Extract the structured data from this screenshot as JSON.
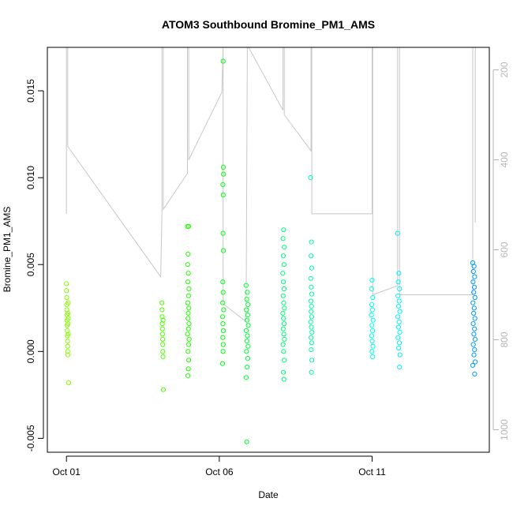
{
  "chart_data": {
    "type": "scatter",
    "title": "ATOM3 Southbound Bromine_PM1_AMS",
    "xlabel": "Date",
    "ylabel": "Bromine_PM1_AMS",
    "x_ticks": [
      "Oct 01",
      "Oct 06",
      "Oct 11"
    ],
    "y_ticks": [
      "-0.005",
      "0.000",
      "0.005",
      "0.010",
      "0.015"
    ],
    "y2_ticks": [
      "200",
      "400",
      "600",
      "800",
      "1000"
    ],
    "xlim": [
      "2017-09-30T09:00",
      "2017-10-14T20:00"
    ],
    "ylim": [
      -0.0058,
      0.0175
    ],
    "y2lim": [
      1050,
      150
    ],
    "y2_reversed": true,
    "grid": false,
    "legend": "none",
    "colors": {
      "axis": "#000000",
      "right_axis": "#b5b5b5",
      "altitude_line": "#c8c8c8"
    },
    "series": [
      {
        "color": "#88ff00",
        "points": [
          {
            "x": "2017-10-01T00:00",
            "y": 0.0039
          },
          {
            "x": "2017-10-01T00:05",
            "y": 0.0035
          },
          {
            "x": "2017-10-01T00:10",
            "y": 0.0031
          },
          {
            "x": "2017-10-01T00:15",
            "y": 0.0027
          },
          {
            "x": "2017-10-01T00:20",
            "y": 0.0024
          },
          {
            "x": "2017-10-01T00:25",
            "y": 0.0021
          },
          {
            "x": "2017-10-01T00:30",
            "y": 0.0018
          },
          {
            "x": "2017-10-01T00:35",
            "y": 0.0015
          },
          {
            "x": "2017-10-01T00:40",
            "y": 0.0012
          },
          {
            "x": "2017-10-01T00:45",
            "y": 0.0009
          },
          {
            "x": "2017-10-01T00:50",
            "y": 0.0006
          },
          {
            "x": "2017-10-01T00:55",
            "y": 0.0003
          },
          {
            "x": "2017-10-01T01:00",
            "y": 0.0
          },
          {
            "x": "2017-10-01T01:05",
            "y": -0.0002
          },
          {
            "x": "2017-10-01T01:10",
            "y": 0.0022
          },
          {
            "x": "2017-10-01T01:15",
            "y": 0.0016
          },
          {
            "x": "2017-10-01T01:20",
            "y": 0.0028
          },
          {
            "x": "2017-10-01T01:25",
            "y": 0.001
          },
          {
            "x": "2017-10-01T01:30",
            "y": 0.0019
          },
          {
            "x": "2017-10-01T01:40",
            "y": -0.0018
          }
        ]
      },
      {
        "color": "#4dff00",
        "points": [
          {
            "x": "2017-10-04T03:00",
            "y": 0.0028
          },
          {
            "x": "2017-10-04T03:05",
            "y": 0.0024
          },
          {
            "x": "2017-10-04T03:10",
            "y": 0.002
          },
          {
            "x": "2017-10-04T03:15",
            "y": 0.0016
          },
          {
            "x": "2017-10-04T03:20",
            "y": 0.0013
          },
          {
            "x": "2017-10-04T03:25",
            "y": 0.001
          },
          {
            "x": "2017-10-04T03:30",
            "y": 0.0007
          },
          {
            "x": "2017-10-04T03:35",
            "y": 0.0004
          },
          {
            "x": "2017-10-04T03:40",
            "y": 0.0
          },
          {
            "x": "2017-10-04T03:45",
            "y": -0.0003
          },
          {
            "x": "2017-10-04T03:50",
            "y": 0.0018
          },
          {
            "x": "2017-10-04T04:00",
            "y": -0.0022
          }
        ]
      },
      {
        "color": "#22ff00",
        "points": [
          {
            "x": "2017-10-04T23:00",
            "y": 0.0072
          },
          {
            "x": "2017-10-05T00:00",
            "y": 0.0072
          },
          {
            "x": "2017-10-04T23:30",
            "y": 0.0056
          },
          {
            "x": "2017-10-04T23:10",
            "y": 0.005
          },
          {
            "x": "2017-10-04T23:40",
            "y": 0.0045
          },
          {
            "x": "2017-10-04T23:20",
            "y": 0.004
          },
          {
            "x": "2017-10-05T00:10",
            "y": 0.0036
          },
          {
            "x": "2017-10-04T23:50",
            "y": 0.0032
          },
          {
            "x": "2017-10-04T23:15",
            "y": 0.0028
          },
          {
            "x": "2017-10-05T00:05",
            "y": 0.0025
          },
          {
            "x": "2017-10-04T23:35",
            "y": 0.0022
          },
          {
            "x": "2017-10-04T23:25",
            "y": 0.0019
          },
          {
            "x": "2017-10-05T00:15",
            "y": 0.0016
          },
          {
            "x": "2017-10-04T23:45",
            "y": 0.0013
          },
          {
            "x": "2017-10-04T23:05",
            "y": 0.001
          },
          {
            "x": "2017-10-05T00:20",
            "y": 0.0007
          },
          {
            "x": "2017-10-04T23:55",
            "y": 0.0004
          },
          {
            "x": "2017-10-04T23:30",
            "y": 0.0
          },
          {
            "x": "2017-10-05T00:00",
            "y": -0.0005
          },
          {
            "x": "2017-10-04T23:40",
            "y": -0.001
          },
          {
            "x": "2017-10-04T23:20",
            "y": -0.0014
          }
        ]
      },
      {
        "color": "#00ff11",
        "points": [
          {
            "x": "2017-10-06T03:00",
            "y": 0.0167
          },
          {
            "x": "2017-10-06T03:10",
            "y": 0.0106
          },
          {
            "x": "2017-10-06T03:20",
            "y": 0.0102
          },
          {
            "x": "2017-10-06T02:50",
            "y": 0.0096
          },
          {
            "x": "2017-10-06T03:05",
            "y": 0.009
          },
          {
            "x": "2017-10-06T02:55",
            "y": 0.0068
          },
          {
            "x": "2017-10-06T03:15",
            "y": 0.0058
          },
          {
            "x": "2017-10-06T02:45",
            "y": 0.004
          },
          {
            "x": "2017-10-06T03:00",
            "y": 0.0034
          },
          {
            "x": "2017-10-06T02:40",
            "y": 0.0028
          },
          {
            "x": "2017-10-06T03:25",
            "y": 0.0024
          },
          {
            "x": "2017-10-06T02:35",
            "y": 0.002
          },
          {
            "x": "2017-10-06T02:50",
            "y": 0.0016
          },
          {
            "x": "2017-10-06T03:10",
            "y": 0.0012
          },
          {
            "x": "2017-10-06T02:45",
            "y": 0.0008
          },
          {
            "x": "2017-10-06T03:05",
            "y": 0.0004
          },
          {
            "x": "2017-10-06T02:55",
            "y": 0.0
          },
          {
            "x": "2017-10-06T02:35",
            "y": -0.0007
          }
        ]
      },
      {
        "color": "#00ff33",
        "points": [
          {
            "x": "2017-10-06T21:00",
            "y": 0.0038
          },
          {
            "x": "2017-10-06T22:00",
            "y": 0.0034
          },
          {
            "x": "2017-10-06T21:30",
            "y": 0.003
          },
          {
            "x": "2017-10-06T22:30",
            "y": 0.0027
          },
          {
            "x": "2017-10-06T21:15",
            "y": 0.0024
          },
          {
            "x": "2017-10-06T22:15",
            "y": 0.0021
          },
          {
            "x": "2017-10-06T21:45",
            "y": 0.0018
          },
          {
            "x": "2017-10-06T22:45",
            "y": 0.0015
          },
          {
            "x": "2017-10-06T21:10",
            "y": 0.0012
          },
          {
            "x": "2017-10-06T22:05",
            "y": 0.0009
          },
          {
            "x": "2017-10-06T21:40",
            "y": 0.0006
          },
          {
            "x": "2017-10-06T22:35",
            "y": 0.0003
          },
          {
            "x": "2017-10-06T21:20",
            "y": 0.0
          },
          {
            "x": "2017-10-06T22:20",
            "y": -0.0004
          },
          {
            "x": "2017-10-06T21:50",
            "y": -0.0009
          },
          {
            "x": "2017-10-06T21:05",
            "y": -0.0015
          },
          {
            "x": "2017-10-06T21:30",
            "y": -0.0052
          }
        ]
      },
      {
        "color": "#00ff77",
        "points": [
          {
            "x": "2017-10-08T02:00",
            "y": 0.0065
          },
          {
            "x": "2017-10-08T02:30",
            "y": 0.007
          },
          {
            "x": "2017-10-08T03:00",
            "y": 0.006
          },
          {
            "x": "2017-10-08T02:15",
            "y": 0.0055
          },
          {
            "x": "2017-10-08T02:45",
            "y": 0.005
          },
          {
            "x": "2017-10-08T01:50",
            "y": 0.0045
          },
          {
            "x": "2017-10-08T02:20",
            "y": 0.004
          },
          {
            "x": "2017-10-08T02:50",
            "y": 0.0036
          },
          {
            "x": "2017-10-08T02:05",
            "y": 0.0032
          },
          {
            "x": "2017-10-08T02:35",
            "y": 0.0028
          },
          {
            "x": "2017-10-08T03:05",
            "y": 0.0025
          },
          {
            "x": "2017-10-08T01:55",
            "y": 0.0022
          },
          {
            "x": "2017-10-08T02:25",
            "y": 0.0019
          },
          {
            "x": "2017-10-08T02:55",
            "y": 0.0016
          },
          {
            "x": "2017-10-08T02:10",
            "y": 0.0013
          },
          {
            "x": "2017-10-08T02:40",
            "y": 0.001
          },
          {
            "x": "2017-10-08T03:10",
            "y": 0.0007
          },
          {
            "x": "2017-10-08T02:00",
            "y": 0.0004
          },
          {
            "x": "2017-10-08T02:30",
            "y": 0.0
          },
          {
            "x": "2017-10-08T03:00",
            "y": -0.0005
          },
          {
            "x": "2017-10-08T02:20",
            "y": -0.0012
          },
          {
            "x": "2017-10-08T02:45",
            "y": -0.0016
          }
        ]
      },
      {
        "color": "#00ffa0",
        "points": [
          {
            "x": "2017-10-08T23:40",
            "y": 0.01
          },
          {
            "x": "2017-10-09T00:20",
            "y": 0.0063
          },
          {
            "x": "2017-10-09T00:00",
            "y": 0.0055
          },
          {
            "x": "2017-10-09T00:30",
            "y": 0.0048
          },
          {
            "x": "2017-10-08T23:50",
            "y": 0.0042
          },
          {
            "x": "2017-10-09T00:10",
            "y": 0.0037
          },
          {
            "x": "2017-10-09T00:40",
            "y": 0.0033
          },
          {
            "x": "2017-10-08T23:55",
            "y": 0.0029
          },
          {
            "x": "2017-10-09T00:25",
            "y": 0.0026
          },
          {
            "x": "2017-10-09T00:05",
            "y": 0.0023
          },
          {
            "x": "2017-10-09T00:35",
            "y": 0.002
          },
          {
            "x": "2017-10-08T23:45",
            "y": 0.0017
          },
          {
            "x": "2017-10-09T00:15",
            "y": 0.0014
          },
          {
            "x": "2017-10-09T00:45",
            "y": 0.0011
          },
          {
            "x": "2017-10-09T00:00",
            "y": 0.0008
          },
          {
            "x": "2017-10-09T00:30",
            "y": 0.0005
          },
          {
            "x": "2017-10-09T00:10",
            "y": 0.0001
          },
          {
            "x": "2017-10-09T00:40",
            "y": -0.0005
          },
          {
            "x": "2017-10-09T00:20",
            "y": -0.0012
          }
        ]
      },
      {
        "color": "#00ffee",
        "points": [
          {
            "x": "2017-10-11T00:00",
            "y": 0.0041
          },
          {
            "x": "2017-10-10T23:30",
            "y": 0.0036
          },
          {
            "x": "2017-10-11T00:30",
            "y": 0.0031
          },
          {
            "x": "2017-10-10T23:45",
            "y": 0.0027
          },
          {
            "x": "2017-10-11T00:15",
            "y": 0.0024
          },
          {
            "x": "2017-10-10T23:20",
            "y": 0.0021
          },
          {
            "x": "2017-10-11T00:45",
            "y": 0.0018
          },
          {
            "x": "2017-10-10T23:50",
            "y": 0.0015
          },
          {
            "x": "2017-10-11T00:20",
            "y": 0.0012
          },
          {
            "x": "2017-10-10T23:35",
            "y": 0.0009
          },
          {
            "x": "2017-10-11T00:05",
            "y": 0.0006
          },
          {
            "x": "2017-10-11T00:35",
            "y": 0.0003
          },
          {
            "x": "2017-10-10T23:55",
            "y": 0.0
          },
          {
            "x": "2017-10-11T00:25",
            "y": -0.0003
          }
        ]
      },
      {
        "color": "#00f0ff",
        "points": [
          {
            "x": "2017-10-11T20:00",
            "y": 0.0068
          },
          {
            "x": "2017-10-11T21:00",
            "y": 0.0045
          },
          {
            "x": "2017-10-11T20:30",
            "y": 0.004
          },
          {
            "x": "2017-10-11T21:30",
            "y": 0.0036
          },
          {
            "x": "2017-10-11T20:15",
            "y": 0.0032
          },
          {
            "x": "2017-10-11T21:15",
            "y": 0.0029
          },
          {
            "x": "2017-10-11T20:45",
            "y": 0.0026
          },
          {
            "x": "2017-10-11T21:45",
            "y": 0.0023
          },
          {
            "x": "2017-10-11T20:10",
            "y": 0.002
          },
          {
            "x": "2017-10-11T21:10",
            "y": 0.0017
          },
          {
            "x": "2017-10-11T20:40",
            "y": 0.0014
          },
          {
            "x": "2017-10-11T21:40",
            "y": 0.0011
          },
          {
            "x": "2017-10-11T20:20",
            "y": 0.0008
          },
          {
            "x": "2017-10-11T21:20",
            "y": 0.0005
          },
          {
            "x": "2017-10-11T20:50",
            "y": 0.0002
          },
          {
            "x": "2017-10-11T21:50",
            "y": -0.0002
          },
          {
            "x": "2017-10-11T21:30",
            "y": -0.0009
          }
        ]
      },
      {
        "color": "#0099ff",
        "points": [
          {
            "x": "2017-10-14T07:00",
            "y": 0.0051
          },
          {
            "x": "2017-10-14T08:00",
            "y": 0.0049
          },
          {
            "x": "2017-10-14T07:30",
            "y": 0.0046
          },
          {
            "x": "2017-10-14T08:30",
            "y": 0.0043
          },
          {
            "x": "2017-10-14T07:15",
            "y": 0.004
          },
          {
            "x": "2017-10-14T08:15",
            "y": 0.0037
          },
          {
            "x": "2017-10-14T07:45",
            "y": 0.0034
          },
          {
            "x": "2017-10-14T08:45",
            "y": 0.0031
          },
          {
            "x": "2017-10-14T07:10",
            "y": 0.0028
          },
          {
            "x": "2017-10-14T08:10",
            "y": 0.0025
          },
          {
            "x": "2017-10-14T07:40",
            "y": 0.0022
          },
          {
            "x": "2017-10-14T08:40",
            "y": 0.0019
          },
          {
            "x": "2017-10-14T07:20",
            "y": 0.0016
          },
          {
            "x": "2017-10-14T08:20",
            "y": 0.0013
          },
          {
            "x": "2017-10-14T07:50",
            "y": 0.001
          },
          {
            "x": "2017-10-14T08:50",
            "y": 0.0007
          },
          {
            "x": "2017-10-14T07:25",
            "y": 0.0004
          },
          {
            "x": "2017-10-14T08:25",
            "y": 0.0001
          },
          {
            "x": "2017-10-14T07:55",
            "y": -0.0002
          },
          {
            "x": "2017-10-14T08:55",
            "y": -0.0006
          },
          {
            "x": "2017-10-14T07:00",
            "y": -0.0008
          },
          {
            "x": "2017-10-14T08:30",
            "y": -0.0013
          }
        ]
      }
    ],
    "altitude_line": [
      {
        "x": "2017-10-01T00:00",
        "y2": 520
      },
      {
        "x": "2017-10-01T00:00",
        "y2": 150
      },
      {
        "x": "2017-10-01T01:00",
        "y2": 150
      },
      {
        "x": "2017-10-01T01:00",
        "y2": 370
      },
      {
        "x": "2017-10-04T02:00",
        "y2": 660
      },
      {
        "x": "2017-10-04T03:00",
        "y2": 520
      },
      {
        "x": "2017-10-04T03:00",
        "y2": 150
      },
      {
        "x": "2017-10-04T04:00",
        "y2": 150
      },
      {
        "x": "2017-10-04T04:00",
        "y2": 510
      },
      {
        "x": "2017-10-04T23:00",
        "y2": 430
      },
      {
        "x": "2017-10-04T23:00",
        "y2": 150
      },
      {
        "x": "2017-10-05T00:00",
        "y2": 150
      },
      {
        "x": "2017-10-05T00:00",
        "y2": 400
      },
      {
        "x": "2017-10-06T02:00",
        "y2": 250
      },
      {
        "x": "2017-10-06T03:00",
        "y2": 150
      },
      {
        "x": "2017-10-06T03:00",
        "y2": 720
      },
      {
        "x": "2017-10-06T21:00",
        "y2": 760
      },
      {
        "x": "2017-10-06T22:00",
        "y2": 150
      },
      {
        "x": "2017-10-06T23:00",
        "y2": 150
      },
      {
        "x": "2017-10-08T02:00",
        "y2": 290
      },
      {
        "x": "2017-10-08T02:00",
        "y2": 150
      },
      {
        "x": "2017-10-08T03:00",
        "y2": 150
      },
      {
        "x": "2017-10-08T03:00",
        "y2": 300
      },
      {
        "x": "2017-10-09T00:00",
        "y2": 380
      },
      {
        "x": "2017-10-09T00:00",
        "y2": 150
      },
      {
        "x": "2017-10-09T00:40",
        "y2": 150
      },
      {
        "x": "2017-10-09T00:40",
        "y2": 520
      },
      {
        "x": "2017-10-11T00:00",
        "y2": 520
      },
      {
        "x": "2017-10-11T00:00",
        "y2": 150
      },
      {
        "x": "2017-10-11T00:30",
        "y2": 150
      },
      {
        "x": "2017-10-11T00:30",
        "y2": 700
      },
      {
        "x": "2017-10-11T20:00",
        "y2": 680
      },
      {
        "x": "2017-10-11T20:00",
        "y2": 150
      },
      {
        "x": "2017-10-11T21:30",
        "y2": 150
      },
      {
        "x": "2017-10-11T21:30",
        "y2": 700
      },
      {
        "x": "2017-10-14T07:00",
        "y2": 700
      },
      {
        "x": "2017-10-14T07:00",
        "y2": 150
      },
      {
        "x": "2017-10-14T09:00",
        "y2": 150
      },
      {
        "x": "2017-10-14T09:00",
        "y2": 540
      }
    ]
  }
}
